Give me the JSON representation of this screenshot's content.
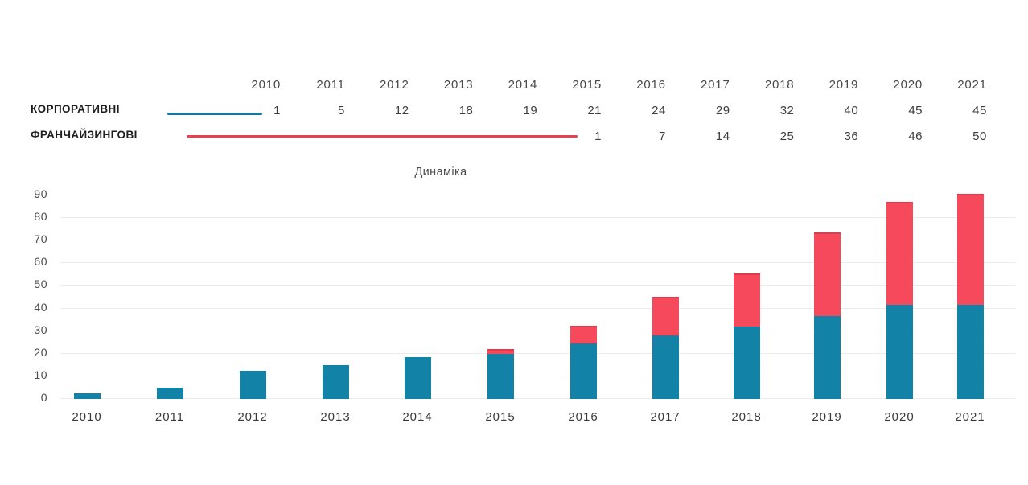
{
  "title": "Динаміка",
  "colors": {
    "corporate_bar": "#1282a7",
    "franchise_bar": "#f6495c",
    "franchise_bar_cap": "#e2394d",
    "legend_corporate_line": "#1779a2",
    "legend_franchise_line": "#e8404e",
    "gridline": "#ececec",
    "label_text": "#1e1e1e",
    "number_text": "#3d3d3d"
  },
  "table": {
    "years": [
      "2010",
      "2011",
      "2012",
      "2013",
      "2014",
      "2015",
      "2016",
      "2017",
      "2018",
      "2019",
      "2020",
      "2021"
    ],
    "rows": [
      {
        "id": "corporate",
        "label": "КОРПОРАТИВНІ",
        "values": [
          "1",
          "5",
          "12",
          "18",
          "19",
          "21",
          "24",
          "29",
          "32",
          "40",
          "45",
          "45"
        ]
      },
      {
        "id": "franchise",
        "label": "ФРАНЧАЙЗИНГОВІ",
        "values": [
          "",
          "",
          "",
          "",
          "",
          "1",
          "7",
          "14",
          "25",
          "36",
          "46",
          "50"
        ]
      }
    ]
  },
  "chart_data": {
    "type": "bar",
    "stacked": true,
    "title": "Динаміка",
    "categories": [
      "2010",
      "2011",
      "2012",
      "2013",
      "2014",
      "2015",
      "2016",
      "2017",
      "2018",
      "2019",
      "2020",
      "2021"
    ],
    "series": [
      {
        "name": "КОРПОРАТИВНІ",
        "color": "#1282a7",
        "values": [
          1,
          5,
          12,
          18,
          19,
          21,
          24,
          29,
          32,
          40,
          45,
          45
        ],
        "bar_values": [
          2.5,
          5,
          12.5,
          15,
          18.5,
          20,
          24.5,
          28,
          32,
          36.5,
          41.5,
          41.5
        ]
      },
      {
        "name": "ФРАНЧАЙЗИНГОВІ",
        "color": "#f6495c",
        "values": [
          null,
          null,
          null,
          null,
          null,
          1,
          7,
          14,
          25,
          36,
          46,
          50
        ],
        "bar_values": [
          0,
          0,
          0,
          0,
          0,
          2,
          8,
          17,
          23.5,
          37,
          45.5,
          49
        ]
      }
    ],
    "xlabel": "",
    "ylabel": "",
    "ylim": [
      0,
      90
    ],
    "yticks": [
      0,
      10,
      20,
      30,
      40,
      50,
      60,
      70,
      80,
      90
    ],
    "grid": "horizontal",
    "legend_position": "top-table"
  }
}
